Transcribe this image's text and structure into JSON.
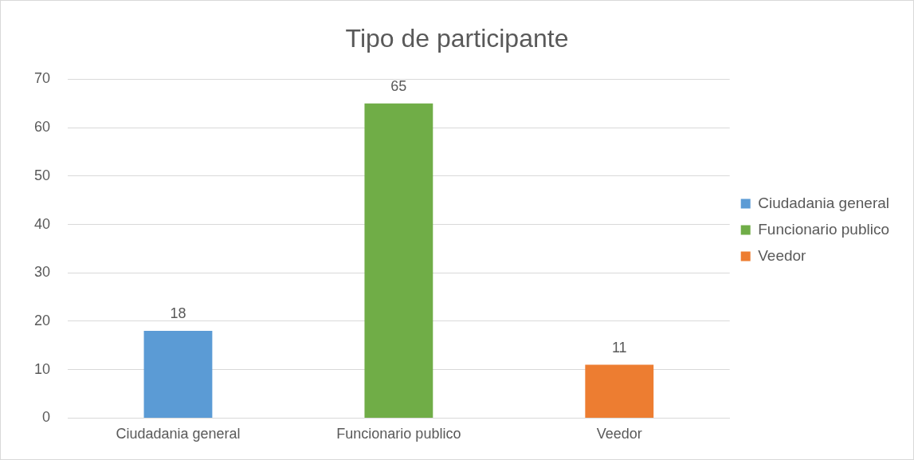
{
  "chart_data": {
    "type": "bar",
    "title": "Tipo de participante",
    "categories": [
      "Ciudadania general",
      "Funcionario publico",
      "Veedor"
    ],
    "series": [
      {
        "name": "Ciudadania general",
        "color": "#5b9bd5",
        "values": [
          18,
          null,
          null
        ]
      },
      {
        "name": "Funcionario publico",
        "color": "#70ad47",
        "values": [
          null,
          65,
          null
        ]
      },
      {
        "name": "Veedor",
        "color": "#ed7d31",
        "values": [
          null,
          null,
          11
        ]
      }
    ],
    "ylim": [
      0,
      70
    ],
    "yticks": [
      0,
      10,
      20,
      30,
      40,
      50,
      60,
      70
    ],
    "grid": "y",
    "legend": "right",
    "data_labels": true
  }
}
